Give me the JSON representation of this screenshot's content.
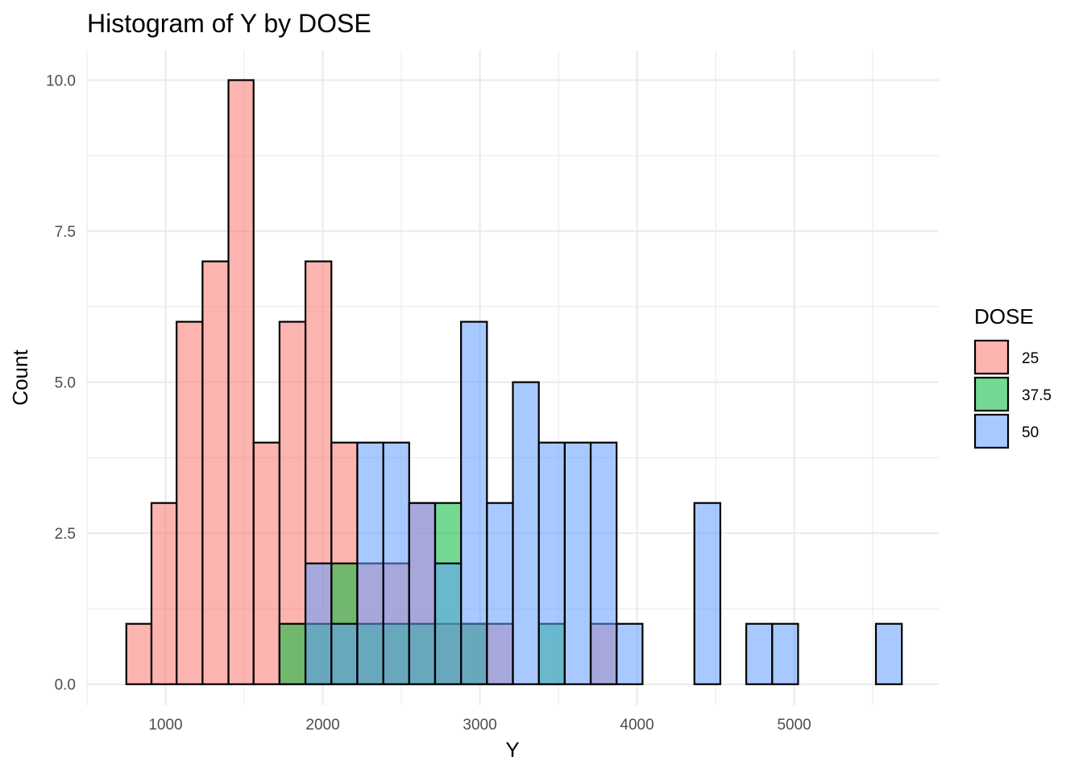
{
  "chart_data": {
    "type": "histogram",
    "title": "Histogram of Y by DOSE",
    "xlabel": "Y",
    "ylabel": "Count",
    "xlim": [
      500,
      5920
    ],
    "ylim": [
      -0.35,
      10.5
    ],
    "xticks": [
      1000,
      2000,
      3000,
      4000,
      5000
    ],
    "xtick_labels": [
      "1000",
      "2000",
      "3000",
      "4000",
      "5000"
    ],
    "yticks": [
      0,
      2.5,
      5,
      7.5,
      10
    ],
    "ytick_labels": [
      "0.0",
      "2.5",
      "5.0",
      "7.5",
      "10.0"
    ],
    "grid": true,
    "legend_position": "right",
    "legend_title": "DOSE",
    "bins": [
      [
        750,
        910
      ],
      [
        910,
        1070
      ],
      [
        1070,
        1235
      ],
      [
        1235,
        1400
      ],
      [
        1400,
        1560
      ],
      [
        1560,
        1725
      ],
      [
        1725,
        1890
      ],
      [
        1890,
        2055
      ],
      [
        2055,
        2220
      ],
      [
        2220,
        2385
      ],
      [
        2385,
        2550
      ],
      [
        2550,
        2715
      ],
      [
        2715,
        2880
      ],
      [
        2880,
        3045
      ],
      [
        3045,
        3210
      ],
      [
        3210,
        3375
      ],
      [
        3375,
        3540
      ],
      [
        3540,
        3705
      ],
      [
        3705,
        3870
      ],
      [
        3870,
        4035
      ],
      [
        4035,
        4200
      ],
      [
        4200,
        4365
      ],
      [
        4365,
        4530
      ],
      [
        4530,
        4695
      ],
      [
        4695,
        4860
      ],
      [
        4860,
        5025
      ],
      [
        5025,
        5190
      ],
      [
        5190,
        5355
      ],
      [
        5355,
        5520
      ],
      [
        5520,
        5685
      ]
    ],
    "series": [
      {
        "name": "25",
        "color": "#F8766D",
        "values": [
          1,
          3,
          6,
          7,
          10,
          4,
          6,
          7,
          4,
          2,
          2,
          3,
          1,
          1,
          1,
          0,
          0,
          0,
          1,
          0,
          0,
          0,
          0,
          0,
          0,
          0,
          0,
          0,
          0,
          0
        ]
      },
      {
        "name": "37.5",
        "color": "#00BA38",
        "values": [
          0,
          0,
          0,
          0,
          0,
          0,
          1,
          1,
          2,
          1,
          1,
          1,
          3,
          1,
          0,
          0,
          1,
          0,
          0,
          0,
          0,
          0,
          0,
          0,
          0,
          0,
          0,
          0,
          0,
          0
        ]
      },
      {
        "name": "50",
        "color": "#619CFF",
        "values": [
          0,
          0,
          0,
          0,
          0,
          0,
          0,
          2,
          1,
          4,
          4,
          3,
          2,
          6,
          3,
          5,
          4,
          4,
          4,
          1,
          0,
          0,
          3,
          0,
          1,
          1,
          0,
          0,
          0,
          1
        ]
      }
    ]
  }
}
